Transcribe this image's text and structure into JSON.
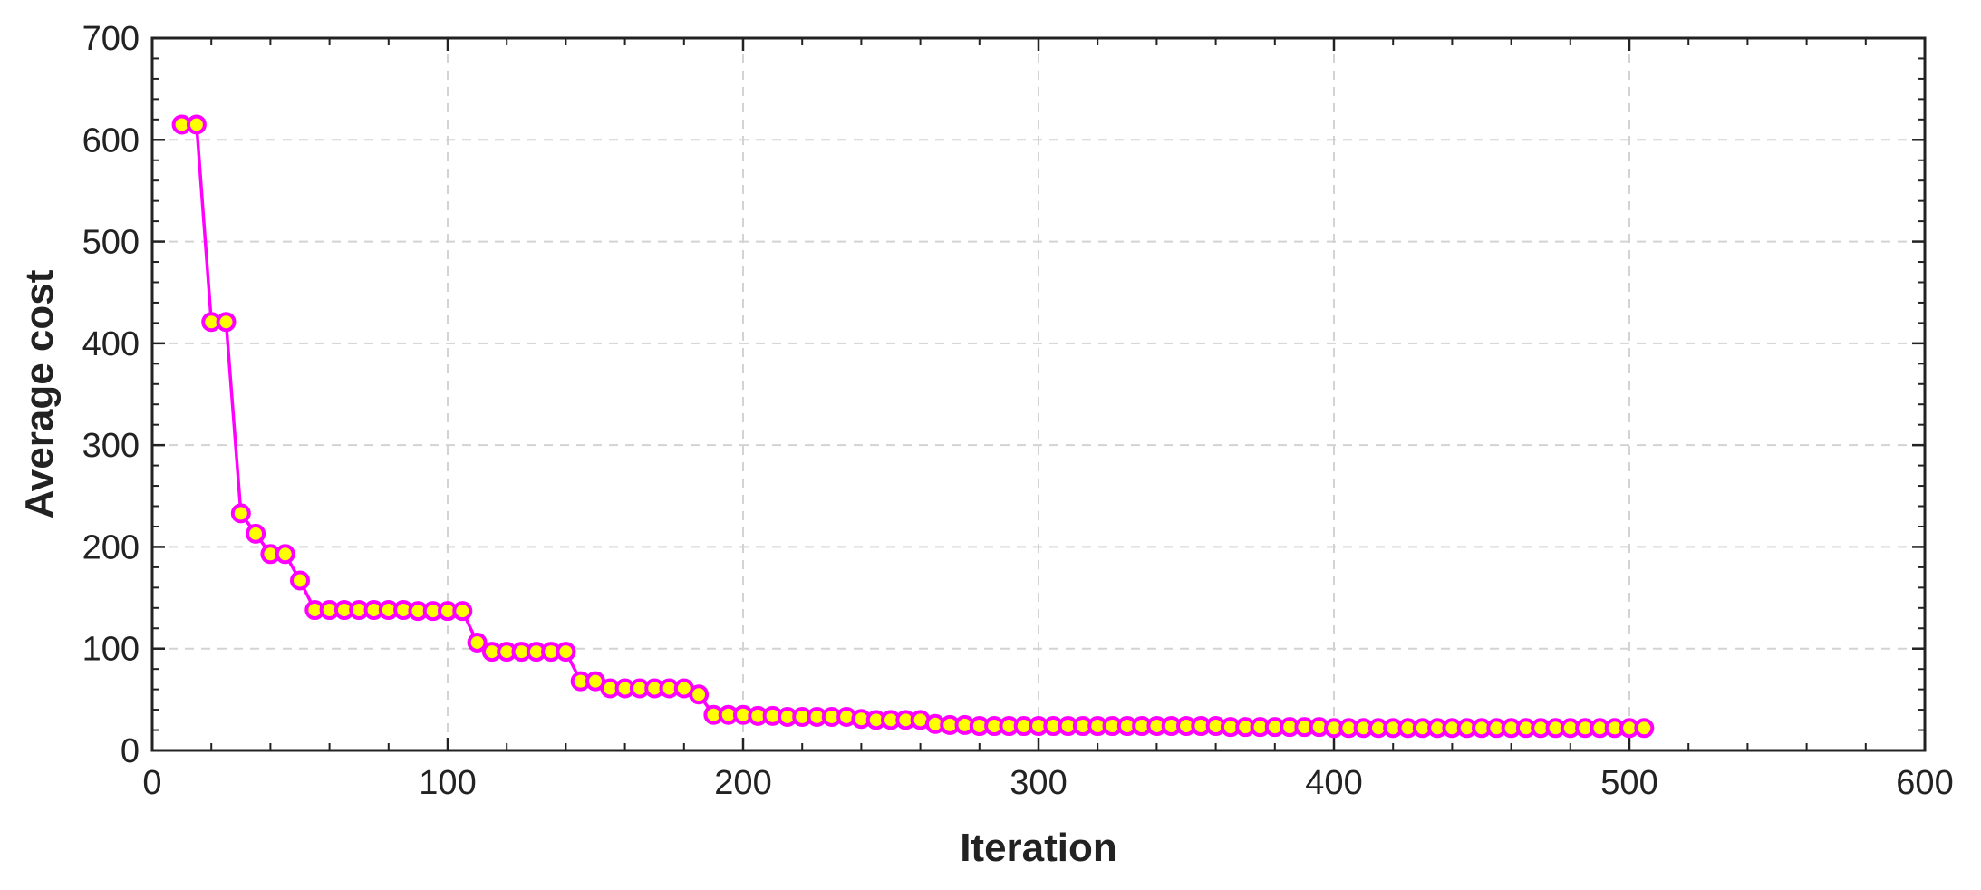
{
  "chart_data": {
    "type": "line",
    "title": "",
    "xlabel": "Iteration",
    "ylabel": "Average cost",
    "xlim": [
      0,
      600
    ],
    "ylim": [
      0,
      700
    ],
    "xticks": [
      0,
      100,
      200,
      300,
      400,
      500,
      600
    ],
    "yticks": [
      0,
      100,
      200,
      300,
      400,
      500,
      600,
      700
    ],
    "grid": true,
    "legend": "none",
    "line_color": "#ff00ff",
    "marker_face_color": "#ffff00",
    "marker_edge_color": "#ff00ff",
    "series": [
      {
        "x": [
          10,
          15,
          20,
          25,
          30,
          35,
          40,
          45,
          50,
          55,
          60,
          65,
          70,
          75,
          80,
          85,
          90,
          95,
          100,
          105,
          110,
          115,
          120,
          125,
          130,
          135,
          140,
          145,
          150,
          155,
          160,
          165,
          170,
          175,
          180,
          185,
          190,
          195,
          200,
          205,
          210,
          215,
          220,
          225,
          230,
          235,
          240,
          245,
          250,
          255,
          260,
          265,
          270,
          275,
          280,
          285,
          290,
          295,
          300,
          305,
          310,
          315,
          320,
          325,
          330,
          335,
          340,
          345,
          350,
          355,
          360,
          365,
          370,
          375,
          380,
          385,
          390,
          395,
          400,
          405,
          410,
          415,
          420,
          425,
          430,
          435,
          440,
          445,
          450,
          455,
          460,
          465,
          470,
          475,
          480,
          485,
          490,
          495,
          500,
          505
        ],
        "y": [
          615,
          615,
          421,
          421,
          233,
          213,
          193,
          193,
          167,
          138,
          138,
          138,
          138,
          138,
          138,
          138,
          137,
          137,
          137,
          137,
          106,
          97,
          97,
          97,
          97,
          97,
          97,
          68,
          68,
          61,
          61,
          61,
          61,
          61,
          61,
          55,
          35,
          35,
          35,
          34,
          34,
          33,
          33,
          33,
          33,
          33,
          31,
          30,
          30,
          30,
          30,
          26,
          25,
          25,
          24,
          24,
          24,
          24,
          24,
          24,
          24,
          24,
          24,
          24,
          24,
          24,
          24,
          24,
          24,
          24,
          24,
          23,
          23,
          23,
          23,
          23,
          23,
          23,
          22,
          22,
          22,
          22,
          22,
          22,
          22,
          22,
          22,
          22,
          22,
          22,
          22,
          22,
          22,
          22,
          22,
          22,
          22,
          22,
          22,
          22
        ]
      }
    ]
  }
}
